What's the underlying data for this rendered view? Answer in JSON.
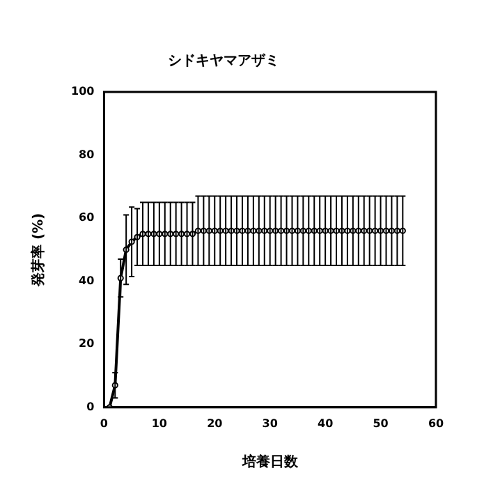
{
  "chart_data": {
    "type": "line",
    "title": "シドキヤマアザミ",
    "xlabel": "培養日数",
    "ylabel": "発芽率 (%)",
    "x": [
      1,
      2,
      3,
      4,
      5,
      6,
      7,
      8,
      9,
      10,
      11,
      12,
      13,
      14,
      15,
      16,
      17,
      18,
      19,
      20,
      21,
      22,
      23,
      24,
      25,
      26,
      27,
      28,
      29,
      30,
      31,
      32,
      33,
      34,
      35,
      36,
      37,
      38,
      39,
      40,
      41,
      42,
      43,
      44,
      45,
      46,
      47,
      48,
      49,
      50,
      51,
      52,
      53,
      54
    ],
    "series": [
      {
        "color": "#000000",
        "values": [
          0,
          7,
          41,
          50,
          52.5,
          54,
          55,
          55,
          55,
          55,
          55,
          55,
          55,
          55,
          55,
          55,
          56,
          56,
          56,
          56,
          56,
          56,
          56,
          56,
          56,
          56,
          56,
          56,
          56,
          56,
          56,
          56,
          56,
          56,
          56,
          56,
          56,
          56,
          56,
          56,
          56,
          56,
          56,
          56,
          56,
          56,
          56,
          56,
          56,
          56,
          56,
          56,
          56,
          56
        ],
        "errors": [
          null,
          4,
          6,
          11,
          11,
          9,
          10,
          10,
          10,
          10,
          10,
          10,
          10,
          10,
          10,
          10,
          11,
          11,
          11,
          11,
          11,
          11,
          11,
          11,
          11,
          11,
          11,
          11,
          11,
          11,
          11,
          11,
          11,
          11,
          11,
          11,
          11,
          11,
          11,
          11,
          11,
          11,
          11,
          11,
          11,
          11,
          11,
          11,
          11,
          11,
          11,
          11,
          11,
          11
        ]
      }
    ],
    "xlim": [
      0,
      60
    ],
    "xticks": [
      0,
      10,
      20,
      30,
      40,
      50,
      60
    ],
    "ylim": [
      0,
      100
    ],
    "yticks": [
      0,
      20,
      40,
      60,
      80,
      100
    ],
    "grid": false,
    "legend": false,
    "marker": "circle",
    "line_style": "solid"
  }
}
